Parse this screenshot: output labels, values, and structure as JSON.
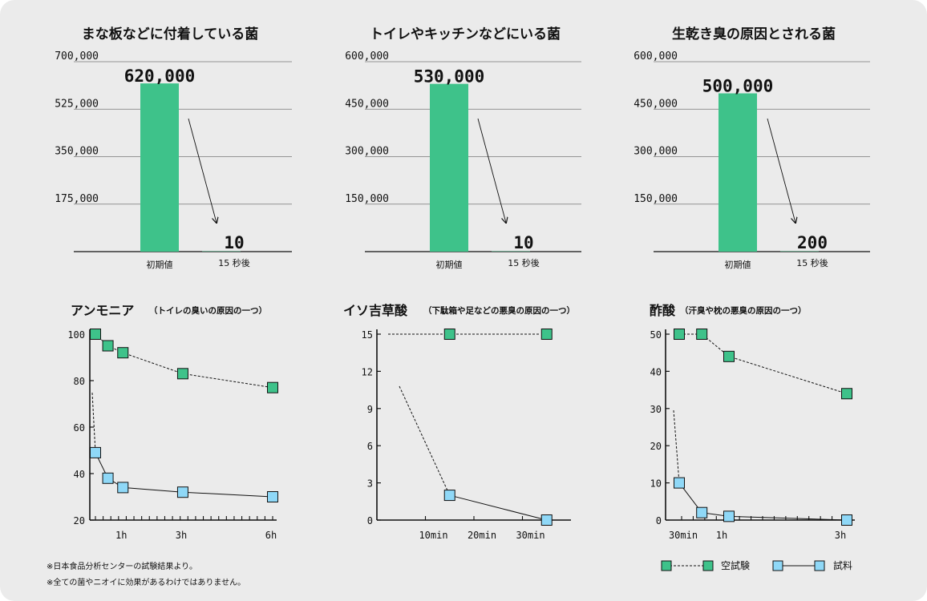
{
  "colors": {
    "green": "#3ec28a",
    "blue": "#8fd8f7",
    "background": "#ebebeb"
  },
  "chart_data": [
    {
      "type": "bar",
      "title": "まな板などに付着している菌",
      "categories": [
        "初期値",
        "15 秒後"
      ],
      "values": [
        620000,
        10
      ],
      "value_labels": [
        "620,000",
        "10"
      ],
      "ylim": [
        0,
        700000
      ],
      "yticks": [
        "175,000",
        "350,000",
        "525,000",
        "700,000"
      ],
      "grid": true
    },
    {
      "type": "bar",
      "title": "トイレやキッチンなどにいる菌",
      "categories": [
        "初期値",
        "15 秒後"
      ],
      "values": [
        530000,
        10
      ],
      "value_labels": [
        "530,000",
        "10"
      ],
      "ylim": [
        0,
        600000
      ],
      "yticks": [
        "150,000",
        "300,000",
        "450,000",
        "600,000"
      ],
      "grid": true
    },
    {
      "type": "bar",
      "title": "生乾き臭の原因とされる菌",
      "categories": [
        "初期値",
        "15 秒後"
      ],
      "values": [
        500000,
        200
      ],
      "value_labels": [
        "500,000",
        "200"
      ],
      "ylim": [
        0,
        600000
      ],
      "yticks": [
        "150,000",
        "300,000",
        "450,000",
        "600,000"
      ],
      "grid": true
    },
    {
      "type": "line",
      "title": "アンモニア",
      "subtitle": "（トイレの臭いの原因の一つ）",
      "xlim": [
        0,
        6.2
      ],
      "ylim": [
        20,
        100
      ],
      "yticks": [
        "20",
        "40",
        "60",
        "80",
        "100"
      ],
      "xticks": [
        "1h",
        "3h",
        "6h"
      ],
      "series": [
        {
          "name": "空試験",
          "x": [
            0.083,
            0.5,
            1.0,
            3.0,
            6.0
          ],
          "y": [
            100,
            95,
            92,
            83,
            77
          ]
        },
        {
          "name": "試料",
          "x": [
            0.083,
            0.5,
            1.0,
            3.0,
            6.0
          ],
          "y": [
            49,
            38,
            34,
            32,
            30
          ]
        }
      ]
    },
    {
      "type": "line",
      "title": "イソ吉草酸",
      "subtitle": "（下駄箱や足などの悪臭の原因の一つ）",
      "xlim": [
        0,
        40
      ],
      "ylim": [
        0,
        15
      ],
      "yticks": [
        "0",
        "3",
        "6",
        "9",
        "12",
        "15"
      ],
      "xticks": [
        "10min",
        "20min",
        "30min"
      ],
      "series": [
        {
          "name": "空試験",
          "x": [
            15,
            35
          ],
          "y": [
            15,
            15
          ]
        },
        {
          "name": "試料",
          "x": [
            15,
            35
          ],
          "y": [
            2,
            0
          ]
        }
      ]
    },
    {
      "type": "line",
      "title": "酢酸",
      "subtitle": "（汗臭や枕の悪臭の原因の一つ）",
      "xlim": [
        0,
        3.1
      ],
      "ylim": [
        0,
        50
      ],
      "yticks": [
        "0",
        "10",
        "20",
        "30",
        "40",
        "50"
      ],
      "xticks": [
        "30min",
        "1h",
        "3h"
      ],
      "series": [
        {
          "name": "空試験",
          "x": [
            0.083,
            0.5,
            1.0,
            3.0
          ],
          "y": [
            50,
            50,
            44,
            34
          ]
        },
        {
          "name": "試料",
          "x": [
            0.083,
            0.5,
            1.0,
            3.0
          ],
          "y": [
            10,
            2,
            1,
            0
          ]
        }
      ]
    }
  ],
  "legend": {
    "blank": "空試験",
    "sample": "試料"
  },
  "notes": [
    "※日本食品分析センターの試験結果より。",
    "※全ての菌やニオイに効果があるわけではありません。"
  ]
}
